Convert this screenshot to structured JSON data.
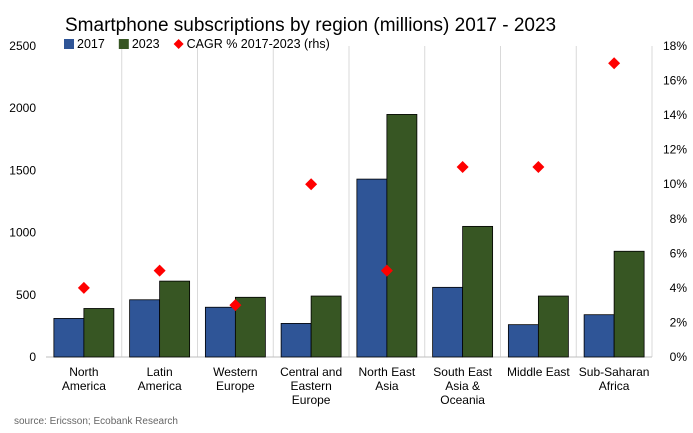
{
  "chart_data": {
    "type": "bar",
    "title": "Smartphone subscriptions by region (millions) 2017 - 2023",
    "categories": [
      [
        "North",
        "America"
      ],
      [
        "Latin",
        "America"
      ],
      [
        "Western",
        "Europe"
      ],
      [
        "Central and",
        "Eastern",
        "Europe"
      ],
      [
        "North East",
        "Asia"
      ],
      [
        "South East",
        "Asia &",
        "Oceania"
      ],
      [
        "Middle East"
      ],
      [
        "Sub-Saharan",
        "Africa"
      ]
    ],
    "series": [
      {
        "name": "2017",
        "axis": "left",
        "type": "bar",
        "color": "#2F5597",
        "values": [
          310,
          460,
          400,
          270,
          1430,
          560,
          260,
          340
        ]
      },
      {
        "name": "2023",
        "axis": "left",
        "type": "bar",
        "color": "#375623",
        "values": [
          390,
          610,
          480,
          490,
          1950,
          1050,
          490,
          850
        ]
      },
      {
        "name": "CAGR % 2017-2023 (rhs)",
        "axis": "right",
        "type": "scatter",
        "marker": "diamond",
        "color": "#FF0000",
        "values": [
          4,
          5,
          3,
          10,
          5,
          11,
          11,
          17
        ]
      }
    ],
    "ylim": [
      0,
      2500
    ],
    "yticks": [
      "0",
      "500",
      "1000",
      "1500",
      "2000",
      "2500"
    ],
    "y2lim": [
      0,
      18
    ],
    "y2ticks": [
      "0%",
      "2%",
      "4%",
      "6%",
      "8%",
      "10%",
      "12%",
      "14%",
      "16%",
      "18%"
    ],
    "legend": "top-left",
    "grid": false,
    "source": "source: Ericsson; Ecobank Research"
  }
}
